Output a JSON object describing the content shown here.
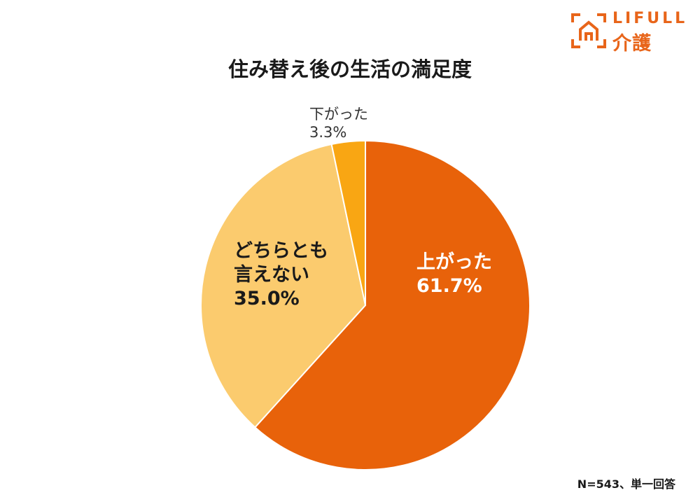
{
  "logo": {
    "text_en": "LIFULL",
    "text_jp": "介護",
    "color": "#e8651a",
    "icon": "house-frame-icon"
  },
  "chart_data": {
    "type": "pie",
    "title": "住み替え後の生活の満足度",
    "slices": [
      {
        "label": "上がった",
        "value": 61.7,
        "value_label": "61.7%",
        "color": "#e8620a",
        "text_color": "#ffffff"
      },
      {
        "label": "どちらとも言えない",
        "label_lines": [
          "どちらとも",
          "言えない"
        ],
        "value": 35.0,
        "value_label": "35.0%",
        "color": "#fbcb6e",
        "text_color": "#1a1a1a"
      },
      {
        "label": "下がった",
        "value": 3.3,
        "value_label": "3.3%",
        "color": "#f9a613",
        "text_color": "#333333"
      }
    ],
    "start_angle": "12 o'clock",
    "direction": "clockwise"
  },
  "footnote": "N=543、単一回答"
}
